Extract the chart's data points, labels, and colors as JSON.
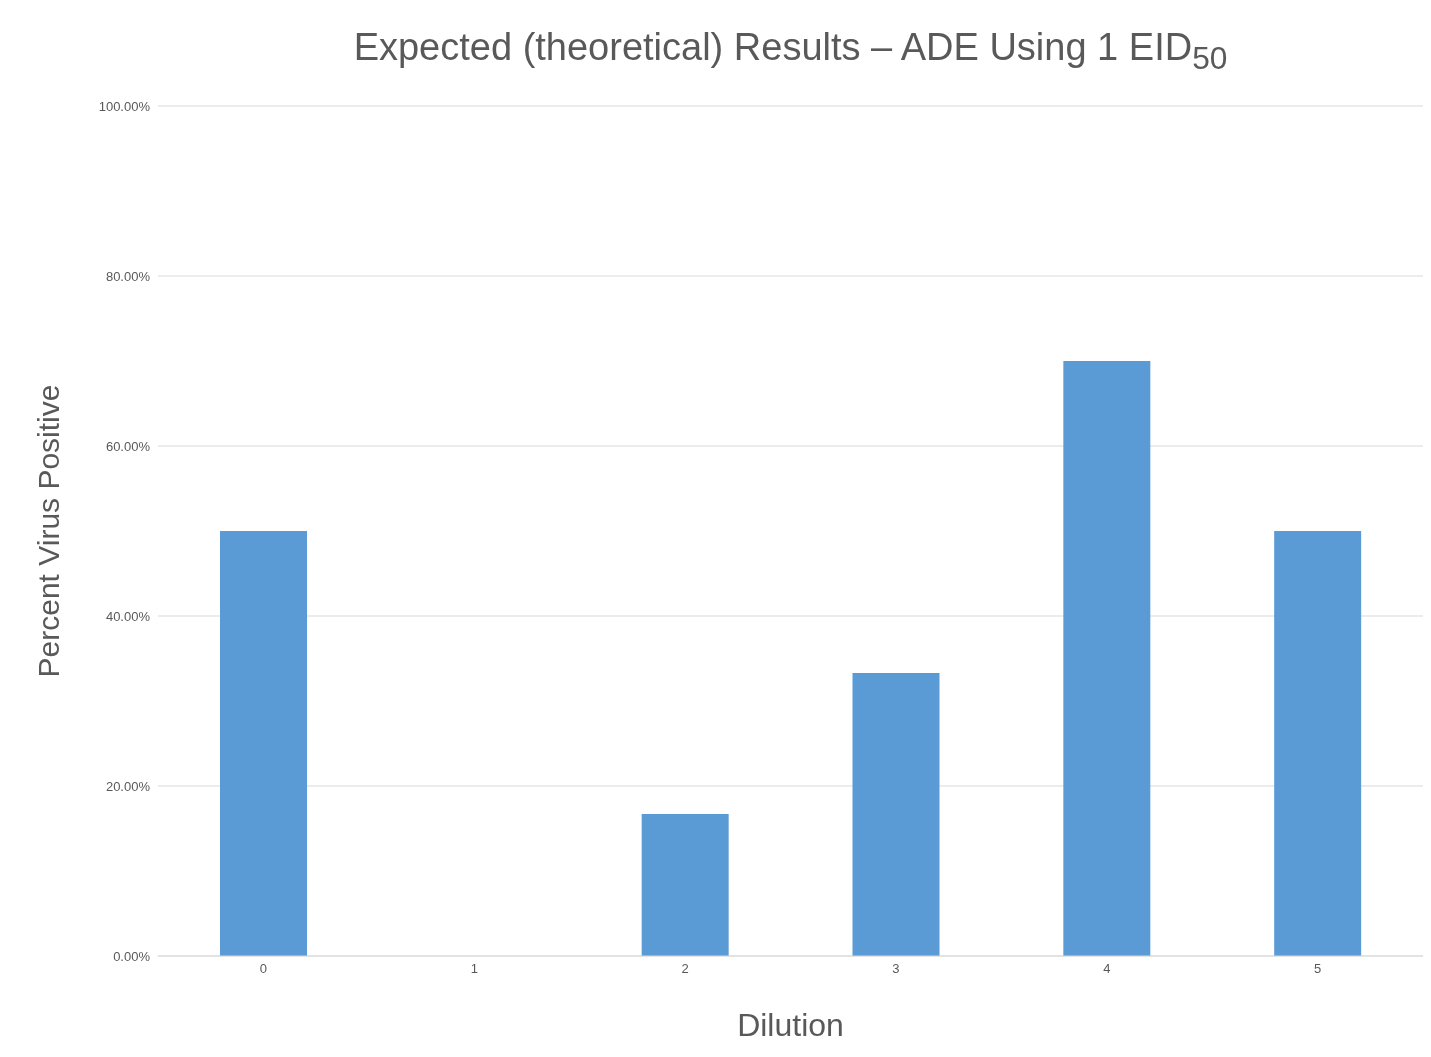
{
  "chart_data": {
    "type": "bar",
    "title": "Expected (theoretical) Results – ADE Using 1 EID$_{50}$",
    "xlabel": "Dilution",
    "ylabel": "Percent Virus Positive",
    "categories": [
      "0",
      "1",
      "2",
      "3",
      "4",
      "5"
    ],
    "values": [
      50,
      0,
      16.7,
      33.3,
      70,
      50
    ],
    "color": "#5b9bd5",
    "ylim": [
      0,
      100
    ],
    "yticks": [
      {
        "value": 0,
        "label": "0.00%"
      },
      {
        "value": 20,
        "label": "20.00%"
      },
      {
        "value": 40,
        "label": "40.00%"
      },
      {
        "value": 60,
        "label": "60.00%"
      },
      {
        "value": 80,
        "label": "80.00%"
      },
      {
        "value": 100,
        "label": "100.00%"
      }
    ],
    "grid": "y"
  }
}
